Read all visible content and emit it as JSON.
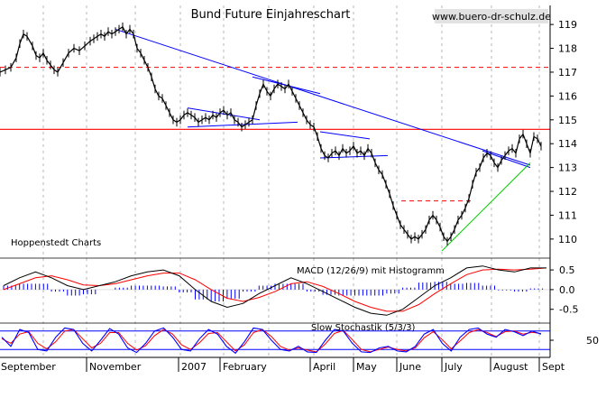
{
  "chart_data": {
    "type": "line",
    "title": "Bund Future Einjahreschart",
    "source_label": "www.buero-dr-schulz.de",
    "provider_label": "Hoppenstedt Charts",
    "colors": {
      "price": "#000000",
      "trendline": "#0000ff",
      "support_resistance": "#ff0000",
      "uptrend": "#00cc00",
      "macd": "#000000",
      "macd_signal": "#ff0000",
      "histogram": "#0000ff",
      "stochastic_k": "#0000ff",
      "stochastic_d": "#ff0000"
    },
    "x_labels": [
      "September",
      "November",
      "2007",
      "February",
      "April",
      "May",
      "June",
      "July",
      "August",
      "Sept"
    ],
    "price_panel": {
      "y_ticks": [
        110,
        111,
        112,
        113,
        114,
        115,
        116,
        117,
        118,
        119
      ],
      "ylim": [
        109.2,
        119.8
      ],
      "series": [
        {
          "x": [
            0,
            6,
            12,
            18,
            22,
            26,
            30,
            36,
            40,
            44,
            48,
            52,
            56,
            60,
            64,
            70,
            76,
            82,
            88,
            94,
            100,
            104,
            108,
            112,
            116,
            120,
            124,
            128,
            132,
            136,
            140,
            144,
            148,
            152,
            156,
            160,
            164,
            168,
            172,
            176,
            180,
            184,
            188,
            192,
            196,
            200,
            204,
            208,
            212,
            216,
            220,
            224,
            228,
            232,
            236,
            240,
            244,
            248,
            252,
            256,
            260,
            264,
            268,
            272,
            276,
            280,
            284,
            288,
            292,
            296,
            300,
            304,
            308,
            312,
            316,
            320,
            324,
            328,
            332,
            336,
            340,
            344,
            348,
            352,
            356,
            360,
            364,
            368,
            372,
            376,
            380,
            384,
            388,
            392,
            396,
            400,
            404,
            408,
            412,
            416,
            420,
            424,
            428,
            432,
            436,
            440,
            444,
            448,
            452,
            456,
            460,
            464,
            468,
            472,
            476,
            480,
            484,
            488,
            492,
            496,
            500,
            504,
            508,
            512,
            516,
            520,
            524,
            528,
            532,
            536,
            540,
            544,
            548,
            552,
            556,
            560,
            564,
            568,
            572,
            576,
            580,
            584,
            588,
            592,
            596,
            600
          ],
          "y": [
            117.0,
            117.1,
            117.2,
            117.6,
            118.2,
            118.6,
            118.5,
            118.1,
            117.7,
            117.6,
            117.8,
            117.5,
            117.3,
            117.1,
            117.0,
            117.4,
            117.8,
            118.0,
            117.9,
            118.1,
            118.3,
            118.4,
            118.5,
            118.6,
            118.5,
            118.7,
            118.6,
            118.7,
            118.8,
            118.9,
            118.6,
            118.8,
            118.6,
            118.0,
            117.8,
            117.5,
            117.2,
            116.8,
            116.3,
            116.0,
            115.9,
            115.6,
            115.3,
            115.0,
            114.9,
            115.0,
            115.2,
            115.3,
            115.2,
            115.1,
            114.9,
            115.0,
            115.1,
            115.0,
            115.2,
            115.1,
            115.3,
            115.4,
            115.2,
            115.3,
            115.0,
            114.9,
            114.7,
            114.8,
            114.9,
            115.0,
            115.6,
            116.1,
            116.5,
            116.2,
            116.0,
            116.3,
            116.5,
            116.4,
            116.3,
            116.5,
            116.2,
            115.9,
            115.6,
            115.3,
            115.0,
            114.8,
            114.7,
            114.3,
            113.8,
            113.5,
            113.4,
            113.6,
            113.7,
            113.5,
            113.8,
            113.6,
            113.7,
            113.9,
            113.6,
            113.7,
            113.5,
            113.8,
            113.6,
            113.2,
            112.9,
            112.7,
            112.3,
            111.9,
            111.4,
            111.0,
            110.6,
            110.4,
            110.2,
            110.0,
            110.1,
            110.0,
            110.2,
            110.4,
            110.8,
            111.0,
            110.8,
            110.5,
            110.1,
            109.9,
            110.1,
            110.4,
            110.8,
            111.0,
            111.3,
            111.7,
            112.3,
            112.8,
            113.0,
            113.4,
            113.6,
            113.5,
            113.2,
            113.0,
            113.3,
            113.5,
            113.7,
            113.8,
            113.6,
            114.2,
            114.4,
            114.0,
            113.6,
            114.3,
            114.2,
            113.9
          ]
        }
      ],
      "annotations": {
        "resistance_lines": [
          117.2,
          114.6
        ],
        "short_resistance": {
          "from": 445,
          "to": 525,
          "value": 111.6
        },
        "main_downtrend": {
          "from": [
            128,
            118.8
          ],
          "to": [
            588,
            113.1
          ]
        },
        "wedge_top": {
          "from": [
            208,
            115.5
          ],
          "to": [
            288,
            115.0
          ]
        },
        "wedge_bottom": {
          "from": [
            208,
            114.7
          ],
          "to": [
            330,
            114.9
          ]
        },
        "flag_top": {
          "from": [
            280,
            116.8
          ],
          "to": [
            355,
            116.1
          ]
        },
        "flag_bottom": {
          "from": [
            355,
            114.5
          ],
          "to": [
            410,
            114.2
          ]
        },
        "flag_lower": {
          "from": [
            355,
            113.4
          ],
          "to": [
            430,
            113.5
          ]
        },
        "triangle_top": {
          "from": [
            535,
            113.7
          ],
          "to": [
            588,
            113.0
          ]
        },
        "uptrend": {
          "from": [
            490,
            109.5
          ],
          "to": [
            588,
            113.2
          ]
        }
      }
    },
    "macd_panel": {
      "title": "MACD (12/26/9) mit Histogramm",
      "y_ticks": [
        0.5,
        0.0,
        -0.5
      ],
      "ylim": [
        -0.85,
        0.8
      ],
      "macd": [
        0.1,
        0.3,
        0.45,
        0.3,
        0.1,
        0.0,
        0.1,
        0.2,
        0.35,
        0.45,
        0.5,
        0.35,
        0.0,
        -0.3,
        -0.45,
        -0.35,
        -0.1,
        0.1,
        0.3,
        0.15,
        -0.05,
        -0.25,
        -0.45,
        -0.6,
        -0.65,
        -0.5,
        -0.2,
        0.1,
        0.3,
        0.55,
        0.6,
        0.5,
        0.45,
        0.55,
        0.55
      ],
      "signal": [
        0.0,
        0.15,
        0.3,
        0.35,
        0.25,
        0.12,
        0.1,
        0.15,
        0.25,
        0.35,
        0.42,
        0.42,
        0.25,
        0.0,
        -0.22,
        -0.3,
        -0.2,
        -0.05,
        0.15,
        0.2,
        0.08,
        -0.1,
        -0.3,
        -0.45,
        -0.55,
        -0.55,
        -0.38,
        -0.1,
        0.15,
        0.38,
        0.5,
        0.52,
        0.5,
        0.52,
        0.55
      ],
      "histogram": [
        0.1,
        0.15,
        0.15,
        -0.05,
        -0.15,
        -0.12,
        0.0,
        0.05,
        0.1,
        0.1,
        0.08,
        -0.07,
        -0.25,
        -0.3,
        -0.23,
        -0.05,
        0.1,
        0.15,
        0.15,
        -0.05,
        -0.13,
        -0.15,
        -0.15,
        -0.15,
        -0.1,
        0.05,
        0.18,
        0.2,
        0.15,
        0.17,
        0.1,
        -0.02,
        -0.05,
        0.03,
        0.0
      ]
    },
    "stochastic_panel": {
      "title": "Slow Stochastik (5/3/3)",
      "y_ticks": [
        50
      ],
      "ylim": [
        0,
        100
      ],
      "upper_band": 80,
      "lower_band": 20,
      "k": [
        60,
        30,
        85,
        75,
        20,
        15,
        60,
        90,
        85,
        40,
        15,
        50,
        88,
        70,
        25,
        10,
        40,
        80,
        90,
        60,
        20,
        15,
        55,
        85,
        70,
        30,
        8,
        45,
        90,
        85,
        50,
        20,
        15,
        30,
        12,
        10,
        50,
        85,
        80,
        40,
        12,
        10,
        25,
        30,
        15,
        12,
        30,
        70,
        85,
        40,
        15,
        60,
        85,
        90,
        70,
        60,
        85,
        78,
        65,
        80,
        70
      ],
      "d": [
        55,
        40,
        70,
        78,
        40,
        22,
        45,
        80,
        85,
        55,
        25,
        40,
        75,
        75,
        40,
        18,
        32,
        65,
        85,
        70,
        35,
        20,
        42,
        72,
        75,
        45,
        15,
        35,
        75,
        85,
        62,
        30,
        18,
        25,
        18,
        12,
        38,
        72,
        82,
        52,
        20,
        12,
        20,
        28,
        20,
        15,
        25,
        58,
        78,
        52,
        22,
        48,
        75,
        85,
        75,
        62,
        78,
        80,
        70,
        76,
        72
      ]
    }
  }
}
